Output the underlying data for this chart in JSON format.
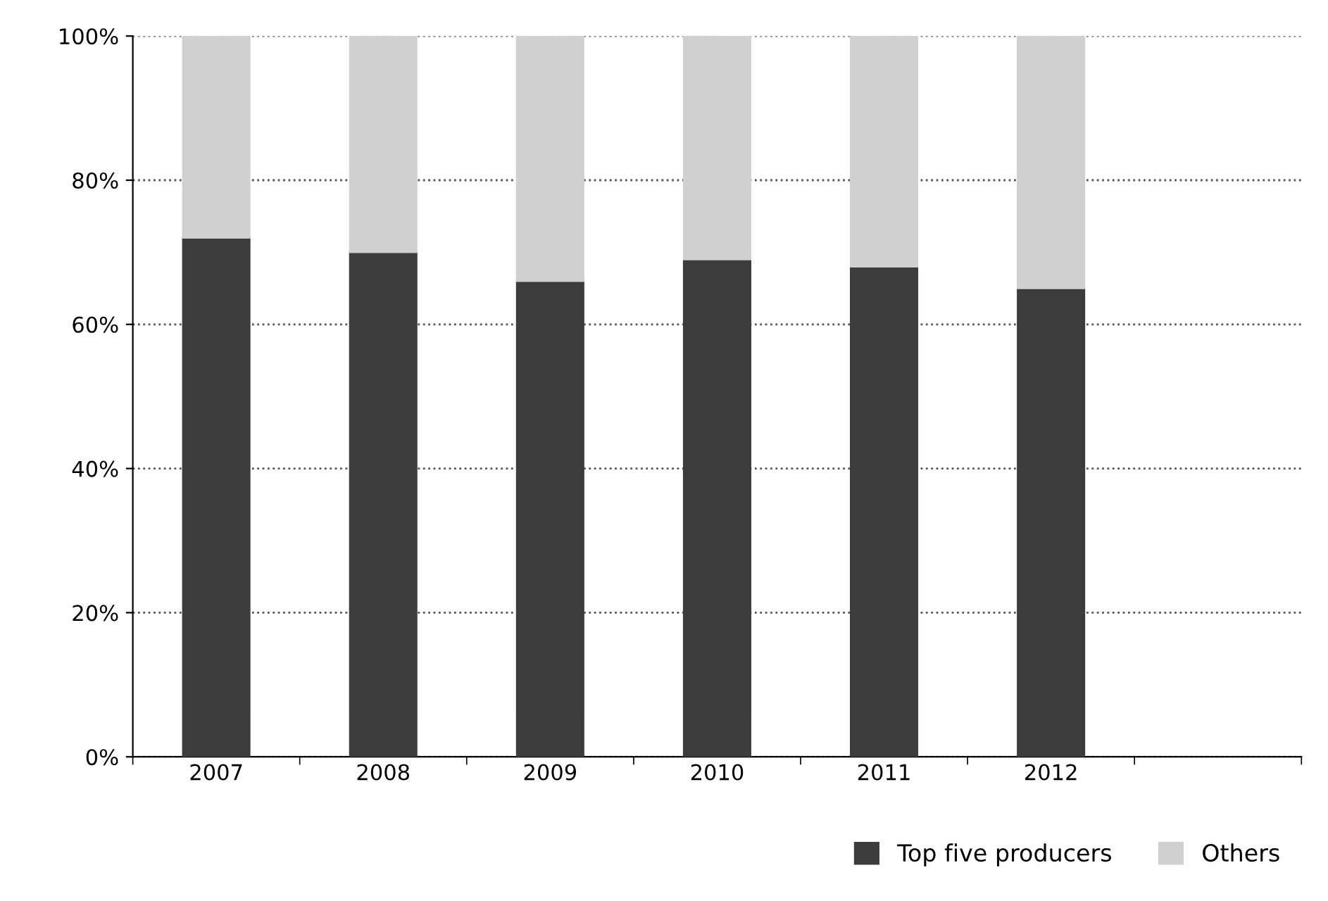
{
  "chart_data": {
    "type": "bar",
    "stacked": true,
    "categories": [
      "2007",
      "2008",
      "2009",
      "2010",
      "2011",
      "2012",
      null
    ],
    "series": [
      {
        "name": "Top five producers",
        "color": "#3c3c3c",
        "values": [
          72,
          70,
          66,
          69,
          68,
          65,
          null
        ]
      },
      {
        "name": "Others",
        "color": "#d0d0d0",
        "values": [
          28,
          30,
          34,
          31,
          32,
          35,
          null
        ]
      }
    ],
    "ylim": [
      0,
      100
    ],
    "yticks": [
      {
        "value": 0,
        "label": "0%"
      },
      {
        "value": 20,
        "label": "20%"
      },
      {
        "value": 40,
        "label": "40%"
      },
      {
        "value": 60,
        "label": "60%"
      },
      {
        "value": 80,
        "label": "80%"
      },
      {
        "value": 100,
        "label": "100%"
      }
    ],
    "grid": "y",
    "legend": "bottom right"
  }
}
